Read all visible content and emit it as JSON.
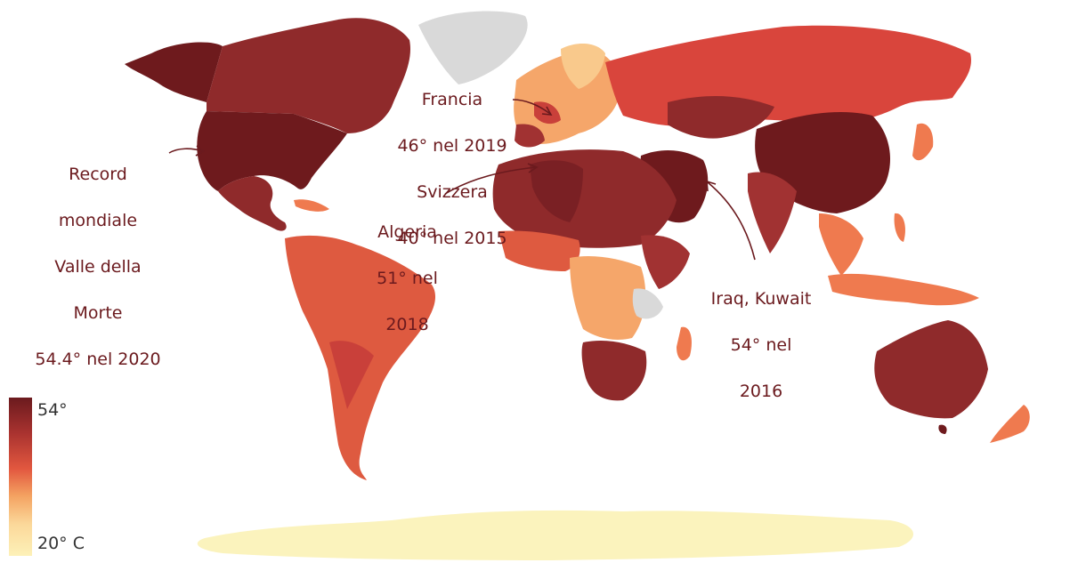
{
  "legend": {
    "max_label": "54°",
    "min_label": "20° C",
    "colors": [
      "#6b1a1e",
      "#a8322f",
      "#e2573f",
      "#f4a261",
      "#fbd89a",
      "#fdf1b8"
    ]
  },
  "annotations": {
    "usa": [
      "Record",
      "mondiale",
      "Valle della",
      "Morte",
      "54.4° nel 2020"
    ],
    "europe": [
      "Francia",
      "46° nel 2019",
      "Svizzera",
      "40° nel 2015"
    ],
    "algeria": [
      "Algeria",
      "51° nel",
      "2018"
    ],
    "iraq": [
      "Iraq, Kuwait",
      "54° nel",
      "2016"
    ]
  },
  "palette": {
    "darkest": "#6e1a1d",
    "dark": "#8f2a2b",
    "darkred": "#a13232",
    "red": "#c9403a",
    "orange_red": "#de5a40",
    "orange": "#ef7a4f",
    "light_orange": "#f5a66a",
    "peach": "#f9c98c",
    "pale": "#fbe7a6",
    "nodata": "#d9d9d9",
    "antarctica": "#fbf3bd"
  }
}
